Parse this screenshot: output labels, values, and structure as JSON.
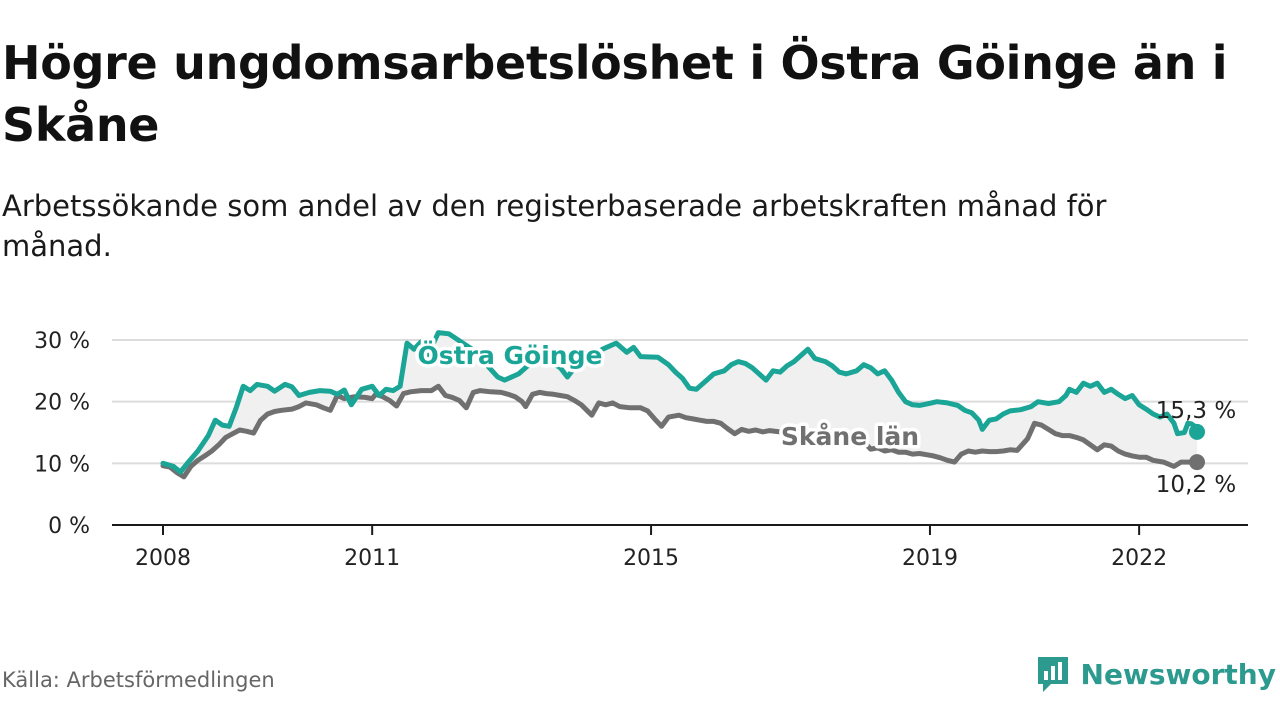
{
  "title": "Högre ungdomsarbetslöshet i Östra Göinge än i Skåne",
  "subtitle": "Arbetssökande som andel av den registerbaserade arbetskraften månad för månad.",
  "source": "Källa: Arbetsförmedlingen",
  "brand": {
    "name": "Newsworthy",
    "icon": "newsworthy-logo-icon",
    "color": "#2c9a8f"
  },
  "colors": {
    "primary": "#1aa597",
    "secondary": "#707070",
    "band": "#f0f0f0",
    "grid": "#dcdcdc"
  },
  "chart_data": {
    "type": "line",
    "title": "Högre ungdomsarbetslöshet i Östra Göinge än i Skåne",
    "xlabel": "",
    "ylabel": "",
    "x_ticks": [
      "2008",
      "2011",
      "2015",
      "2019",
      "2022"
    ],
    "x_tick_values": [
      2008.0,
      2011.0,
      2015.0,
      2019.0,
      2022.0
    ],
    "xlim": [
      2008.0,
      2022.83
    ],
    "ylim": [
      0,
      30
    ],
    "y_ticks": [
      0,
      10,
      20,
      30
    ],
    "y_tick_labels": [
      "0 %",
      "10 %",
      "20 %",
      "30 %"
    ],
    "grid": true,
    "band_between_series": true,
    "series": [
      {
        "name": "Östra Göinge",
        "label": "Östra Göinge",
        "color": "#1aa597",
        "end_label": "15,3 %",
        "points": [
          [
            2008.0,
            10.0
          ],
          [
            2008.15,
            9.5
          ],
          [
            2008.25,
            8.6
          ],
          [
            2008.35,
            10.0
          ],
          [
            2008.5,
            12.0
          ],
          [
            2008.65,
            14.5
          ],
          [
            2008.75,
            17.0
          ],
          [
            2008.85,
            16.2
          ],
          [
            2008.95,
            16.0
          ],
          [
            2009.05,
            19.0
          ],
          [
            2009.15,
            22.5
          ],
          [
            2009.25,
            21.8
          ],
          [
            2009.35,
            22.8
          ],
          [
            2009.5,
            22.5
          ],
          [
            2009.6,
            21.7
          ],
          [
            2009.75,
            22.8
          ],
          [
            2009.85,
            22.4
          ],
          [
            2009.95,
            21.0
          ],
          [
            2010.1,
            21.5
          ],
          [
            2010.25,
            21.8
          ],
          [
            2010.4,
            21.7
          ],
          [
            2010.5,
            21.2
          ],
          [
            2010.6,
            21.9
          ],
          [
            2010.7,
            19.5
          ],
          [
            2010.85,
            22.0
          ],
          [
            2011.0,
            22.5
          ],
          [
            2011.1,
            21.0
          ],
          [
            2011.2,
            22.0
          ],
          [
            2011.3,
            21.8
          ],
          [
            2011.4,
            22.5
          ],
          [
            2011.5,
            29.5
          ],
          [
            2011.6,
            28.5
          ],
          [
            2011.7,
            29.7
          ],
          [
            2011.8,
            27.6
          ],
          [
            2011.95,
            31.2
          ],
          [
            2012.1,
            31.0
          ],
          [
            2012.3,
            29.5
          ],
          [
            2012.5,
            28.0
          ],
          [
            2012.6,
            26.5
          ],
          [
            2012.8,
            24.0
          ],
          [
            2012.9,
            23.5
          ],
          [
            2013.1,
            24.5
          ],
          [
            2013.3,
            26.5
          ],
          [
            2013.4,
            27.2
          ],
          [
            2013.55,
            26.5
          ],
          [
            2013.7,
            25.5
          ],
          [
            2013.8,
            24.0
          ],
          [
            2013.9,
            25.5
          ],
          [
            2014.1,
            27.0
          ],
          [
            2014.3,
            28.5
          ],
          [
            2014.5,
            29.5
          ],
          [
            2014.65,
            28.0
          ],
          [
            2014.75,
            28.8
          ],
          [
            2014.85,
            27.3
          ],
          [
            2015.1,
            27.2
          ],
          [
            2015.25,
            26.0
          ],
          [
            2015.35,
            24.8
          ],
          [
            2015.45,
            23.8
          ],
          [
            2015.55,
            22.2
          ],
          [
            2015.65,
            22.0
          ],
          [
            2015.8,
            23.5
          ],
          [
            2015.9,
            24.5
          ],
          [
            2016.05,
            25.0
          ],
          [
            2016.15,
            26.0
          ],
          [
            2016.25,
            26.5
          ],
          [
            2016.35,
            26.2
          ],
          [
            2016.45,
            25.5
          ],
          [
            2016.55,
            24.5
          ],
          [
            2016.65,
            23.5
          ],
          [
            2016.75,
            25.0
          ],
          [
            2016.85,
            24.8
          ],
          [
            2016.95,
            25.8
          ],
          [
            2017.05,
            26.5
          ],
          [
            2017.15,
            27.5
          ],
          [
            2017.25,
            28.5
          ],
          [
            2017.35,
            27.0
          ],
          [
            2017.5,
            26.5
          ],
          [
            2017.6,
            25.8
          ],
          [
            2017.7,
            24.8
          ],
          [
            2017.8,
            24.5
          ],
          [
            2017.95,
            25.0
          ],
          [
            2018.05,
            26.0
          ],
          [
            2018.15,
            25.5
          ],
          [
            2018.25,
            24.5
          ],
          [
            2018.35,
            25.0
          ],
          [
            2018.45,
            23.5
          ],
          [
            2018.55,
            21.5
          ],
          [
            2018.65,
            20.0
          ],
          [
            2018.75,
            19.5
          ],
          [
            2018.85,
            19.4
          ],
          [
            2018.95,
            19.6
          ],
          [
            2019.1,
            20.0
          ],
          [
            2019.25,
            19.8
          ],
          [
            2019.4,
            19.4
          ],
          [
            2019.5,
            18.6
          ],
          [
            2019.6,
            18.2
          ],
          [
            2019.7,
            17.0
          ],
          [
            2019.75,
            15.5
          ],
          [
            2019.85,
            17.0
          ],
          [
            2019.95,
            17.2
          ],
          [
            2020.05,
            18.0
          ],
          [
            2020.15,
            18.5
          ],
          [
            2020.3,
            18.7
          ],
          [
            2020.45,
            19.2
          ],
          [
            2020.55,
            20.0
          ],
          [
            2020.7,
            19.7
          ],
          [
            2020.85,
            20.0
          ],
          [
            2020.95,
            21.0
          ],
          [
            2021.0,
            22.0
          ],
          [
            2021.1,
            21.5
          ],
          [
            2021.2,
            23.0
          ],
          [
            2021.3,
            22.5
          ],
          [
            2021.4,
            23.0
          ],
          [
            2021.5,
            21.5
          ],
          [
            2021.6,
            22.0
          ],
          [
            2021.7,
            21.2
          ],
          [
            2021.8,
            20.5
          ],
          [
            2021.9,
            21.0
          ],
          [
            2022.0,
            19.5
          ],
          [
            2022.1,
            18.8
          ],
          [
            2022.2,
            18.0
          ],
          [
            2022.3,
            17.5
          ],
          [
            2022.4,
            18.0
          ],
          [
            2022.5,
            16.5
          ],
          [
            2022.55,
            14.8
          ],
          [
            2022.65,
            15.0
          ],
          [
            2022.7,
            16.5
          ],
          [
            2022.75,
            16.4
          ],
          [
            2022.8,
            16.0
          ],
          [
            2022.85,
            14.5
          ],
          [
            2022.9,
            14.2
          ],
          [
            2022.95,
            15.3
          ],
          [
            2023.02,
            15.3
          ]
        ]
      },
      {
        "name": "Skåne län",
        "label": "Skåne län",
        "color": "#707070",
        "end_label": "10,2 %",
        "points": [
          [
            2008.0,
            9.6
          ],
          [
            2008.1,
            9.4
          ],
          [
            2008.2,
            8.5
          ],
          [
            2008.3,
            7.8
          ],
          [
            2008.4,
            9.5
          ],
          [
            2008.5,
            10.5
          ],
          [
            2008.6,
            11.2
          ],
          [
            2008.7,
            12.0
          ],
          [
            2008.8,
            13.0
          ],
          [
            2008.9,
            14.2
          ],
          [
            2009.0,
            14.8
          ],
          [
            2009.1,
            15.4
          ],
          [
            2009.2,
            15.2
          ],
          [
            2009.3,
            14.9
          ],
          [
            2009.4,
            17.0
          ],
          [
            2009.5,
            18.0
          ],
          [
            2009.6,
            18.4
          ],
          [
            2009.7,
            18.6
          ],
          [
            2009.85,
            18.8
          ],
          [
            2009.95,
            19.2
          ],
          [
            2010.05,
            19.8
          ],
          [
            2010.2,
            19.5
          ],
          [
            2010.3,
            19.0
          ],
          [
            2010.4,
            18.6
          ],
          [
            2010.5,
            21.0
          ],
          [
            2010.6,
            20.5
          ],
          [
            2010.75,
            20.8
          ],
          [
            2010.9,
            20.7
          ],
          [
            2011.0,
            20.5
          ],
          [
            2011.05,
            21.2
          ],
          [
            2011.15,
            20.8
          ],
          [
            2011.25,
            20.2
          ],
          [
            2011.35,
            19.3
          ],
          [
            2011.45,
            21.3
          ],
          [
            2011.55,
            21.6
          ],
          [
            2011.7,
            21.8
          ],
          [
            2011.85,
            21.8
          ],
          [
            2011.95,
            22.5
          ],
          [
            2012.05,
            21.0
          ],
          [
            2012.15,
            20.7
          ],
          [
            2012.25,
            20.2
          ],
          [
            2012.35,
            19.0
          ],
          [
            2012.45,
            21.5
          ],
          [
            2012.55,
            21.8
          ],
          [
            2012.7,
            21.6
          ],
          [
            2012.85,
            21.5
          ],
          [
            2012.95,
            21.2
          ],
          [
            2013.05,
            20.8
          ],
          [
            2013.15,
            20.0
          ],
          [
            2013.2,
            19.2
          ],
          [
            2013.3,
            21.2
          ],
          [
            2013.4,
            21.5
          ],
          [
            2013.5,
            21.3
          ],
          [
            2013.6,
            21.2
          ],
          [
            2013.7,
            21.0
          ],
          [
            2013.8,
            20.8
          ],
          [
            2013.9,
            20.2
          ],
          [
            2014.0,
            19.5
          ],
          [
            2014.15,
            17.8
          ],
          [
            2014.25,
            19.8
          ],
          [
            2014.35,
            19.5
          ],
          [
            2014.45,
            19.8
          ],
          [
            2014.55,
            19.2
          ],
          [
            2014.7,
            19.0
          ],
          [
            2014.85,
            19.0
          ],
          [
            2014.95,
            18.5
          ],
          [
            2015.05,
            17.2
          ],
          [
            2015.15,
            16.0
          ],
          [
            2015.25,
            17.5
          ],
          [
            2015.4,
            17.8
          ],
          [
            2015.5,
            17.4
          ],
          [
            2015.6,
            17.2
          ],
          [
            2015.7,
            17.0
          ],
          [
            2015.8,
            16.8
          ],
          [
            2015.9,
            16.8
          ],
          [
            2016.0,
            16.5
          ],
          [
            2016.1,
            15.6
          ],
          [
            2016.2,
            14.8
          ],
          [
            2016.3,
            15.5
          ],
          [
            2016.4,
            15.2
          ],
          [
            2016.5,
            15.4
          ],
          [
            2016.6,
            15.1
          ],
          [
            2016.7,
            15.3
          ],
          [
            2018.05,
            13.5
          ],
          [
            2018.15,
            12.3
          ],
          [
            2018.25,
            12.5
          ],
          [
            2018.35,
            12.0
          ],
          [
            2018.45,
            12.2
          ],
          [
            2018.55,
            11.8
          ],
          [
            2018.65,
            11.8
          ],
          [
            2018.75,
            11.5
          ],
          [
            2018.85,
            11.6
          ],
          [
            2018.95,
            11.4
          ],
          [
            2019.05,
            11.2
          ],
          [
            2019.15,
            10.9
          ],
          [
            2019.25,
            10.5
          ],
          [
            2019.35,
            10.2
          ],
          [
            2019.45,
            11.5
          ],
          [
            2019.55,
            12.0
          ],
          [
            2019.65,
            11.8
          ],
          [
            2019.75,
            12.0
          ],
          [
            2019.85,
            11.9
          ],
          [
            2019.95,
            11.9
          ],
          [
            2020.05,
            12.0
          ],
          [
            2020.15,
            12.2
          ],
          [
            2020.25,
            12.1
          ],
          [
            2020.4,
            14.0
          ],
          [
            2020.5,
            16.5
          ],
          [
            2020.6,
            16.2
          ],
          [
            2020.7,
            15.5
          ],
          [
            2020.8,
            14.8
          ],
          [
            2020.9,
            14.5
          ],
          [
            2021.0,
            14.5
          ],
          [
            2021.1,
            14.2
          ],
          [
            2021.2,
            13.8
          ],
          [
            2021.3,
            13.0
          ],
          [
            2021.4,
            12.2
          ],
          [
            2021.5,
            13.0
          ],
          [
            2021.6,
            12.8
          ],
          [
            2021.7,
            12.0
          ],
          [
            2021.8,
            11.5
          ],
          [
            2021.9,
            11.2
          ],
          [
            2022.0,
            11.0
          ],
          [
            2022.1,
            11.0
          ],
          [
            2022.2,
            10.5
          ],
          [
            2022.35,
            10.2
          ],
          [
            2022.5,
            9.5
          ],
          [
            2022.6,
            10.2
          ],
          [
            2022.75,
            10.2
          ],
          [
            2022.9,
            10.2
          ],
          [
            2023.02,
            10.2
          ]
        ]
      }
    ]
  }
}
